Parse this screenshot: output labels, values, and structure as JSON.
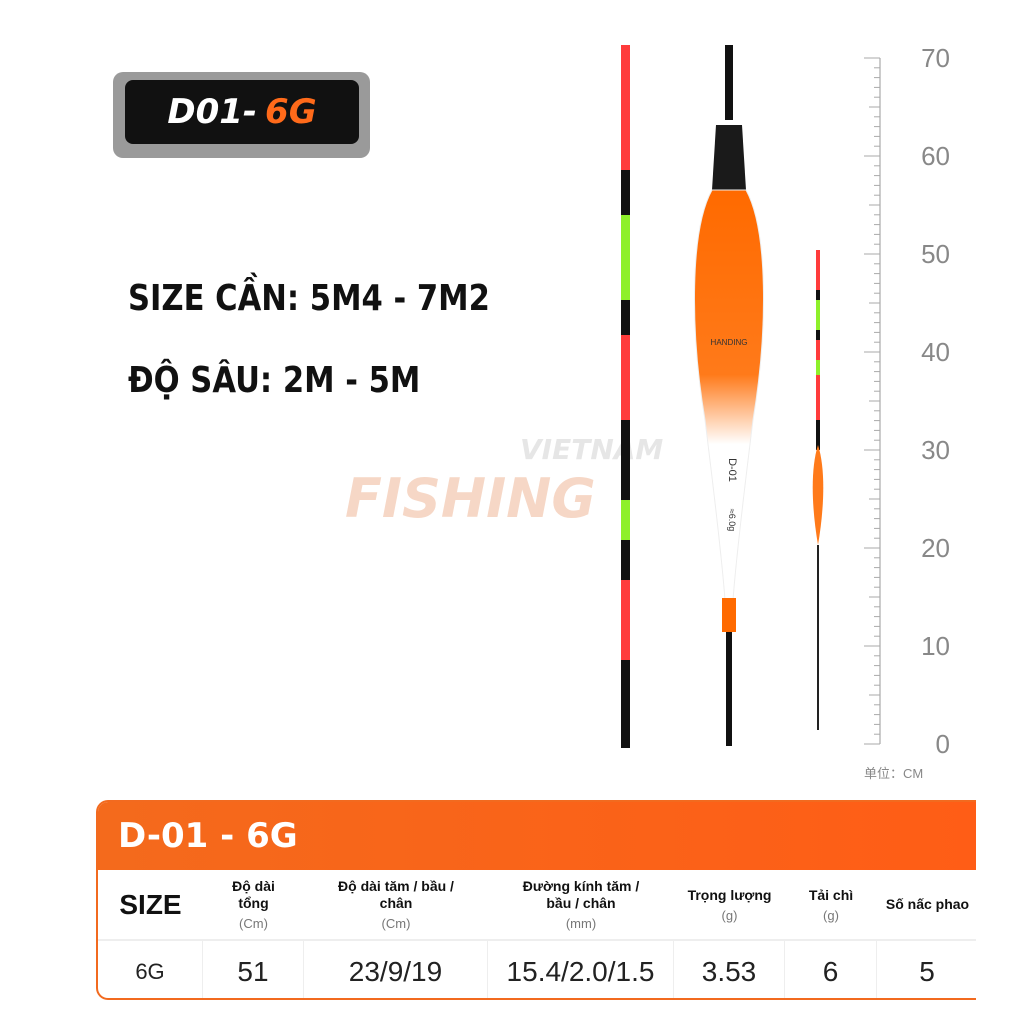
{
  "badge": {
    "model": "D01-",
    "weight": "6G"
  },
  "specs": {
    "rod_size": "SIZE CẦN: 5M4 - 7M2",
    "depth": "ĐỘ SÂU: 2M - 5M"
  },
  "watermark": {
    "top": "VIETNAM",
    "bottom": "FISHING"
  },
  "float_labels": {
    "brand": "HANDING",
    "model": "D-01",
    "weight": "≈6.0g"
  },
  "ruler": {
    "ticks": [
      "70",
      "60",
      "50",
      "40",
      "30",
      "20",
      "10",
      "0"
    ],
    "unit": "单位：CM"
  },
  "table": {
    "title": "D-01 - 6G",
    "headers": [
      {
        "label": "SIZE",
        "unit": ""
      },
      {
        "label": "Độ dài tổng",
        "unit": "(Cm)"
      },
      {
        "label": "Độ dài tăm / bầu / chân",
        "unit": "(Cm)"
      },
      {
        "label": "Đường kính tăm / bầu / chân",
        "unit": "(mm)"
      },
      {
        "label": "Trọng lượng",
        "unit": "(g)"
      },
      {
        "label": "Tải chì",
        "unit": "(g)"
      },
      {
        "label": "Số nấc phao",
        "unit": ""
      }
    ],
    "row": [
      "6G",
      "51",
      "23/9/19",
      "15.4/2.0/1.5",
      "3.53",
      "6",
      "5"
    ]
  },
  "colors": {
    "accent": "#f46a1c",
    "dark": "#111111"
  }
}
